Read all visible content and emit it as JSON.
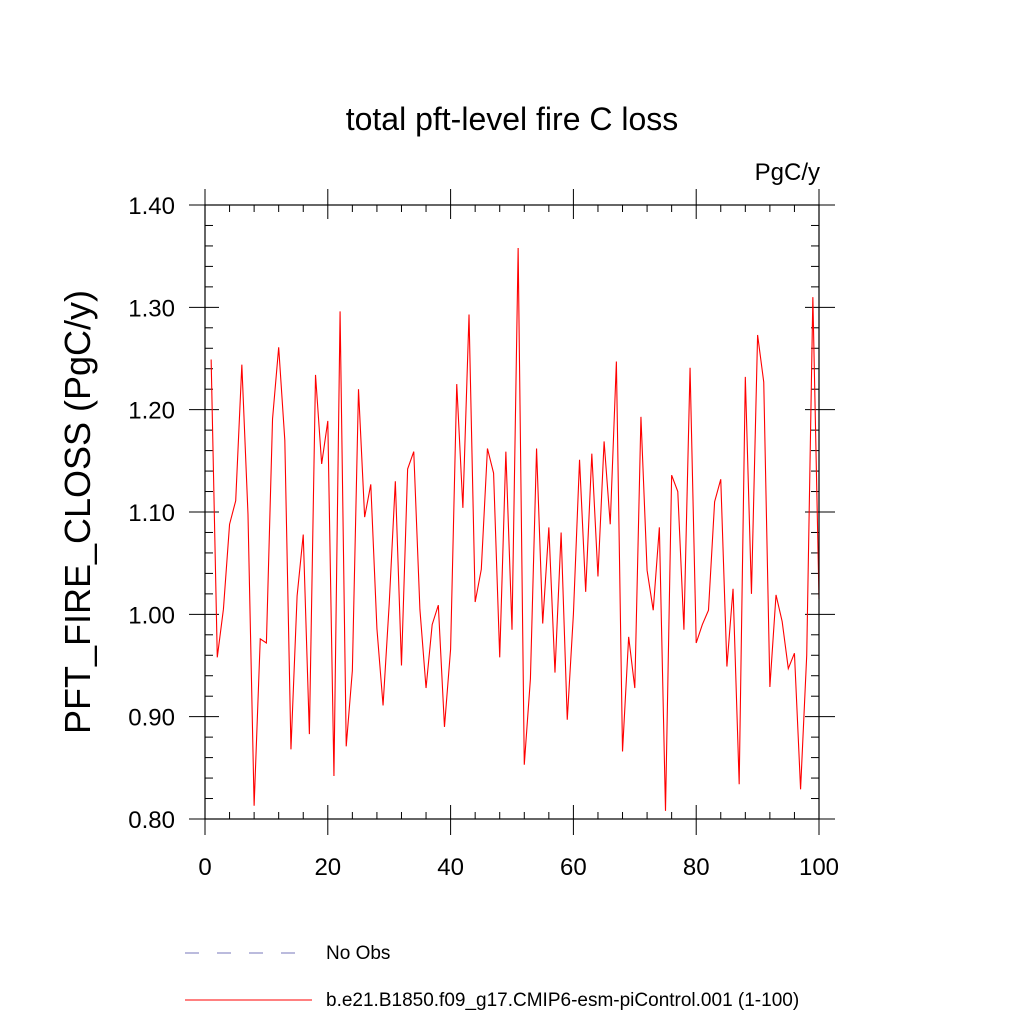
{
  "chart_data": {
    "type": "line",
    "title": "total pft-level fire C loss",
    "units": "PgC/y",
    "xlabel": "",
    "ylabel": "PFT_FIRE_CLOSS  (PgC/y)",
    "xlim": [
      0,
      100
    ],
    "ylim": [
      0.8,
      1.4
    ],
    "xticks": [
      0,
      20,
      40,
      60,
      80,
      100
    ],
    "xtick_labels": [
      "0",
      "20",
      "40",
      "60",
      "80",
      "100"
    ],
    "yticks": [
      0.8,
      0.9,
      1.0,
      1.1,
      1.2,
      1.3,
      1.4
    ],
    "ytick_labels": [
      "0.80",
      "0.90",
      "1.00",
      "1.10",
      "1.20",
      "1.30",
      "1.40"
    ],
    "grid": false,
    "legend": [
      {
        "label": "No Obs",
        "color": "#7777bb",
        "style": "dashed"
      },
      {
        "label": "b.e21.B1850.f09_g17.CMIP6-esm-piControl.001 (1-100)",
        "color": "#ff0000",
        "style": "solid"
      }
    ],
    "series": [
      {
        "name": "b.e21.B1850.f09_g17.CMIP6-esm-piControl.001 (1-100)",
        "color": "#ff0000",
        "x": [
          1,
          2,
          3,
          4,
          5,
          6,
          7,
          8,
          9,
          10,
          11,
          12,
          13,
          14,
          15,
          16,
          17,
          18,
          19,
          20,
          21,
          22,
          23,
          24,
          25,
          26,
          27,
          28,
          29,
          30,
          31,
          32,
          33,
          34,
          35,
          36,
          37,
          38,
          39,
          40,
          41,
          42,
          43,
          44,
          45,
          46,
          47,
          48,
          49,
          50,
          51,
          52,
          53,
          54,
          55,
          56,
          57,
          58,
          59,
          60,
          61,
          62,
          63,
          64,
          65,
          66,
          67,
          68,
          69,
          70,
          71,
          72,
          73,
          74,
          75,
          76,
          77,
          78,
          79,
          80,
          81,
          82,
          83,
          84,
          85,
          86,
          87,
          88,
          89,
          90,
          91,
          92,
          93,
          94,
          95,
          96,
          97,
          98,
          99,
          100
        ],
        "values": [
          1.249,
          0.958,
          1.005,
          1.088,
          1.111,
          1.244,
          1.098,
          0.813,
          0.976,
          0.972,
          1.191,
          1.261,
          1.17,
          0.868,
          1.018,
          1.078,
          0.883,
          1.234,
          1.147,
          1.189,
          0.842,
          1.296,
          0.871,
          0.945,
          1.22,
          1.095,
          1.127,
          0.986,
          0.911,
          1.01,
          1.13,
          0.95,
          1.142,
          1.159,
          1.005,
          0.928,
          0.99,
          1.009,
          0.89,
          0.966,
          1.225,
          1.104,
          1.293,
          1.012,
          1.044,
          1.162,
          1.138,
          0.958,
          1.159,
          0.985,
          1.358,
          0.853,
          0.937,
          1.162,
          0.991,
          1.085,
          0.943,
          1.08,
          0.897,
          1.0,
          1.151,
          1.022,
          1.157,
          1.037,
          1.169,
          1.088,
          1.247,
          0.866,
          0.978,
          0.928,
          1.193,
          1.043,
          1.004,
          1.085,
          0.808,
          1.136,
          1.12,
          0.985,
          1.241,
          0.972,
          0.99,
          1.004,
          1.11,
          1.132,
          0.949,
          1.025,
          0.834,
          1.232,
          1.02,
          1.273,
          1.227,
          0.929,
          1.019,
          0.993,
          0.947,
          0.962,
          0.829,
          0.96,
          1.31,
          1.015
        ]
      }
    ]
  }
}
